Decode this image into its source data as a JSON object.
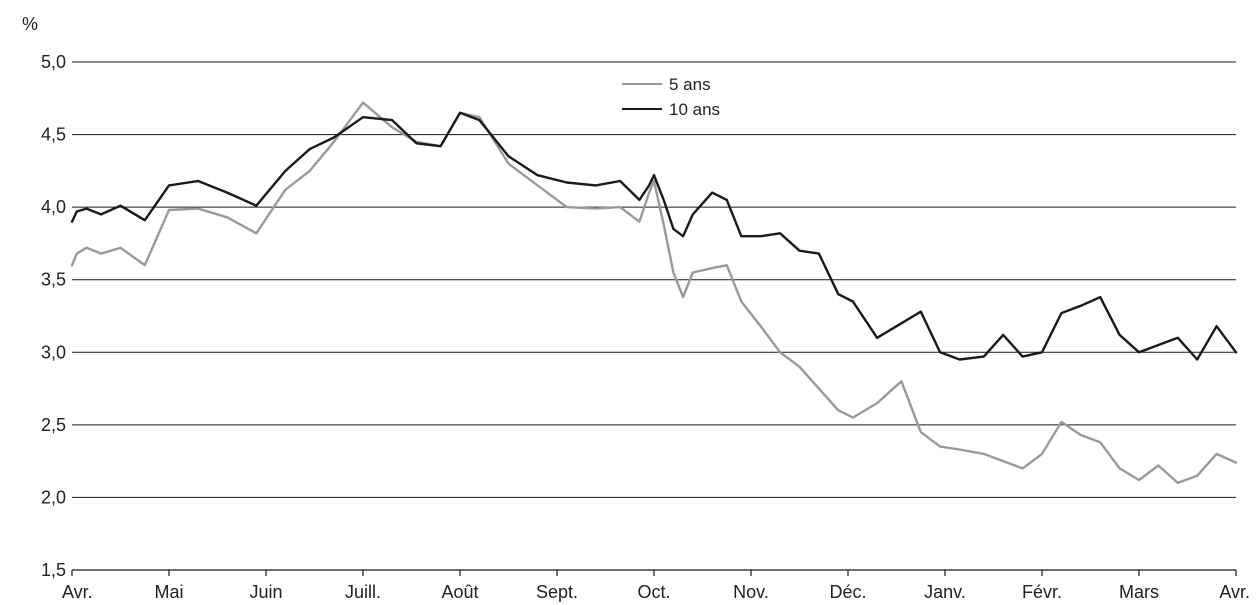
{
  "chart_data": {
    "type": "line",
    "unit_label": "%",
    "ylim": [
      1.5,
      5.0
    ],
    "y_ticks": [
      "5,0",
      "4,5",
      "4,0",
      "3,5",
      "3,0",
      "2,5",
      "2,0",
      "1,5"
    ],
    "y_tick_values": [
      5.0,
      4.5,
      4.0,
      3.5,
      3.0,
      2.5,
      2.0,
      1.5
    ],
    "x_ticks": [
      "Avr.",
      "Mai",
      "Juin",
      "Juill.",
      "Août",
      "Sept.",
      "Oct.",
      "Nov.",
      "Déc.",
      "Janv.",
      "Févr.",
      "Mars",
      "Avr."
    ],
    "grid": true,
    "legend_position": "top-center",
    "series": [
      {
        "name": "5 ans",
        "color": "#9a9a9a",
        "x": [
          0,
          0.05,
          0.15,
          0.3,
          0.5,
          0.75,
          1.0,
          1.3,
          1.6,
          1.9,
          2.2,
          2.45,
          2.7,
          3.0,
          3.3,
          3.55,
          3.8,
          4.0,
          4.2,
          4.5,
          4.8,
          5.1,
          5.4,
          5.65,
          5.85,
          5.95,
          6.0,
          6.1,
          6.2,
          6.3,
          6.4,
          6.6,
          6.75,
          6.9,
          7.1,
          7.3,
          7.5,
          7.7,
          7.9,
          8.05,
          8.3,
          8.55,
          8.75,
          8.95,
          9.15,
          9.4,
          9.6,
          9.8,
          10.0,
          10.2,
          10.4,
          10.6,
          10.8,
          11.0,
          11.2,
          11.4,
          11.6,
          11.8,
          12.0
        ],
        "y": [
          3.6,
          3.68,
          3.72,
          3.68,
          3.72,
          3.6,
          3.98,
          3.99,
          3.93,
          3.82,
          4.12,
          4.25,
          4.45,
          4.72,
          4.55,
          4.45,
          4.42,
          4.65,
          4.62,
          4.3,
          4.15,
          4.0,
          3.99,
          4.0,
          3.9,
          4.1,
          4.18,
          3.88,
          3.55,
          3.38,
          3.55,
          3.58,
          3.6,
          3.35,
          3.18,
          3.0,
          2.9,
          2.75,
          2.6,
          2.55,
          2.65,
          2.8,
          2.45,
          2.35,
          2.33,
          2.3,
          2.25,
          2.2,
          2.3,
          2.52,
          2.43,
          2.38,
          2.2,
          2.12,
          2.22,
          2.1,
          2.15,
          2.3,
          2.24
        ]
      },
      {
        "name": "10 ans",
        "color": "#1a1a1a",
        "x": [
          0,
          0.05,
          0.15,
          0.3,
          0.5,
          0.75,
          1.0,
          1.3,
          1.6,
          1.9,
          2.2,
          2.45,
          2.7,
          3.0,
          3.3,
          3.55,
          3.8,
          4.0,
          4.2,
          4.5,
          4.8,
          5.1,
          5.4,
          5.65,
          5.85,
          5.95,
          6.0,
          6.1,
          6.2,
          6.3,
          6.4,
          6.6,
          6.75,
          6.9,
          7.1,
          7.3,
          7.5,
          7.7,
          7.9,
          8.05,
          8.3,
          8.55,
          8.75,
          8.95,
          9.15,
          9.4,
          9.6,
          9.8,
          10.0,
          10.2,
          10.4,
          10.6,
          10.8,
          11.0,
          11.2,
          11.4,
          11.6,
          11.8,
          12.0
        ],
        "y": [
          3.9,
          3.97,
          3.99,
          3.95,
          4.01,
          3.91,
          4.15,
          4.18,
          4.1,
          4.01,
          4.25,
          4.4,
          4.48,
          4.62,
          4.6,
          4.44,
          4.42,
          4.65,
          4.6,
          4.35,
          4.22,
          4.17,
          4.15,
          4.18,
          4.05,
          4.15,
          4.22,
          4.05,
          3.85,
          3.8,
          3.95,
          4.1,
          4.05,
          3.8,
          3.8,
          3.82,
          3.7,
          3.68,
          3.4,
          3.35,
          3.1,
          3.2,
          3.28,
          3.0,
          2.95,
          2.97,
          3.12,
          2.97,
          3.0,
          3.27,
          3.32,
          3.38,
          3.12,
          3.0,
          3.05,
          3.1,
          2.95,
          3.18,
          3.0
        ]
      }
    ]
  }
}
